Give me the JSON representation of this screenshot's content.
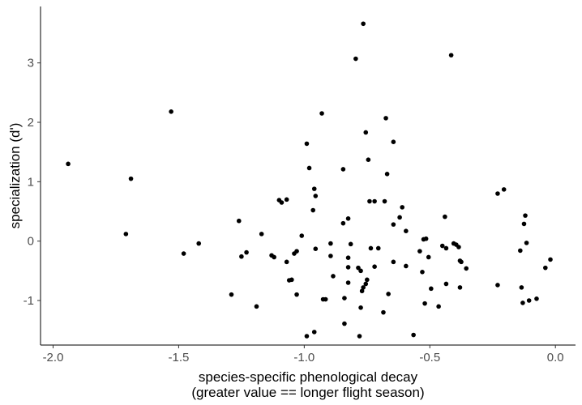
{
  "chart_data": {
    "type": "scatter",
    "title": "",
    "xlabel_lines": [
      "species-specific phenological decay",
      "(greater value == longer flight season)"
    ],
    "ylabel": "specialization (d')",
    "xlim": [
      -2.05,
      0.08
    ],
    "ylim": [
      -1.75,
      3.95
    ],
    "x_ticks": [
      -2.0,
      -1.5,
      -1.0,
      -0.5,
      0.0
    ],
    "x_tick_labels": [
      "-2.0",
      "-1.5",
      "-1.0",
      "-0.5",
      "0.0"
    ],
    "y_ticks": [
      -1,
      0,
      1,
      2,
      3
    ],
    "y_tick_labels": [
      "-1",
      "0",
      "1",
      "2",
      "3"
    ],
    "grid": false,
    "point_color": "#000000",
    "points": [
      {
        "x": -1.94,
        "y": 1.3
      },
      {
        "x": -1.69,
        "y": 1.05
      },
      {
        "x": -1.71,
        "y": 0.12
      },
      {
        "x": -1.53,
        "y": 2.18
      },
      {
        "x": -1.48,
        "y": -0.21
      },
      {
        "x": -1.42,
        "y": -0.04
      },
      {
        "x": -1.26,
        "y": 0.34
      },
      {
        "x": -1.25,
        "y": -0.26
      },
      {
        "x": -1.23,
        "y": -0.19
      },
      {
        "x": -1.29,
        "y": -0.9
      },
      {
        "x": -1.19,
        "y": -1.1
      },
      {
        "x": -1.17,
        "y": 0.12
      },
      {
        "x": -1.13,
        "y": -0.24
      },
      {
        "x": -1.12,
        "y": -0.27
      },
      {
        "x": -1.1,
        "y": 0.69
      },
      {
        "x": -1.09,
        "y": 0.65
      },
      {
        "x": -1.07,
        "y": 0.7
      },
      {
        "x": -1.07,
        "y": -0.35
      },
      {
        "x": -1.06,
        "y": -0.66
      },
      {
        "x": -1.05,
        "y": -0.65
      },
      {
        "x": -1.04,
        "y": -0.21
      },
      {
        "x": -1.03,
        "y": -0.17
      },
      {
        "x": -1.03,
        "y": -0.9
      },
      {
        "x": -1.01,
        "y": 0.09
      },
      {
        "x": -0.99,
        "y": -1.6
      },
      {
        "x": -0.99,
        "y": 1.64
      },
      {
        "x": -0.98,
        "y": 1.23
      },
      {
        "x": -0.96,
        "y": 0.88
      },
      {
        "x": -0.955,
        "y": 0.76
      },
      {
        "x": -0.965,
        "y": 0.52
      },
      {
        "x": -0.955,
        "y": -0.13
      },
      {
        "x": -0.96,
        "y": -1.53
      },
      {
        "x": -0.93,
        "y": 2.15
      },
      {
        "x": -0.925,
        "y": -0.98
      },
      {
        "x": -0.915,
        "y": -0.98
      },
      {
        "x": -0.895,
        "y": -0.04
      },
      {
        "x": -0.895,
        "y": -0.25
      },
      {
        "x": -0.885,
        "y": -0.59
      },
      {
        "x": -0.845,
        "y": 1.21
      },
      {
        "x": -0.845,
        "y": 0.3
      },
      {
        "x": -0.84,
        "y": -0.96
      },
      {
        "x": -0.84,
        "y": -1.39
      },
      {
        "x": -0.825,
        "y": 0.38
      },
      {
        "x": -0.825,
        "y": -0.28
      },
      {
        "x": -0.825,
        "y": -0.44
      },
      {
        "x": -0.825,
        "y": -0.7
      },
      {
        "x": -0.815,
        "y": -0.05
      },
      {
        "x": -0.795,
        "y": 3.07
      },
      {
        "x": -0.785,
        "y": -0.45
      },
      {
        "x": -0.775,
        "y": -0.5
      },
      {
        "x": -0.775,
        "y": -1.12
      },
      {
        "x": -0.78,
        "y": -1.6
      },
      {
        "x": -0.765,
        "y": 3.66
      },
      {
        "x": -0.77,
        "y": -0.84
      },
      {
        "x": -0.765,
        "y": -0.78
      },
      {
        "x": -0.755,
        "y": -0.72
      },
      {
        "x": -0.75,
        "y": -0.65
      },
      {
        "x": -0.755,
        "y": 1.83
      },
      {
        "x": -0.745,
        "y": 1.37
      },
      {
        "x": -0.74,
        "y": 0.67
      },
      {
        "x": -0.735,
        "y": -0.12
      },
      {
        "x": -0.72,
        "y": -0.43
      },
      {
        "x": -0.72,
        "y": 0.67
      },
      {
        "x": -0.705,
        "y": -0.12
      },
      {
        "x": -0.685,
        "y": -1.2
      },
      {
        "x": -0.68,
        "y": 0.67
      },
      {
        "x": -0.675,
        "y": 2.07
      },
      {
        "x": -0.67,
        "y": 1.13
      },
      {
        "x": -0.665,
        "y": -0.89
      },
      {
        "x": -0.645,
        "y": 1.67
      },
      {
        "x": -0.645,
        "y": 0.28
      },
      {
        "x": -0.645,
        "y": -0.35
      },
      {
        "x": -0.62,
        "y": 0.4
      },
      {
        "x": -0.61,
        "y": 0.57
      },
      {
        "x": -0.595,
        "y": -0.42
      },
      {
        "x": -0.595,
        "y": 0.17
      },
      {
        "x": -0.565,
        "y": -1.58
      },
      {
        "x": -0.54,
        "y": -0.17
      },
      {
        "x": -0.53,
        "y": -0.52
      },
      {
        "x": -0.525,
        "y": 0.03
      },
      {
        "x": -0.515,
        "y": 0.04
      },
      {
        "x": -0.52,
        "y": -1.05
      },
      {
        "x": -0.505,
        "y": -0.27
      },
      {
        "x": -0.495,
        "y": -0.8
      },
      {
        "x": -0.465,
        "y": -1.1
      },
      {
        "x": -0.45,
        "y": -0.08
      },
      {
        "x": -0.44,
        "y": 0.41
      },
      {
        "x": -0.435,
        "y": -0.72
      },
      {
        "x": -0.435,
        "y": -0.12
      },
      {
        "x": -0.415,
        "y": 3.13
      },
      {
        "x": -0.405,
        "y": -0.04
      },
      {
        "x": -0.395,
        "y": -0.06
      },
      {
        "x": -0.385,
        "y": -0.1
      },
      {
        "x": -0.38,
        "y": -0.33
      },
      {
        "x": -0.38,
        "y": -0.78
      },
      {
        "x": -0.375,
        "y": -0.35
      },
      {
        "x": -0.355,
        "y": -0.46
      },
      {
        "x": -0.23,
        "y": 0.8
      },
      {
        "x": -0.23,
        "y": -0.74
      },
      {
        "x": -0.205,
        "y": 0.87
      },
      {
        "x": -0.14,
        "y": -0.16
      },
      {
        "x": -0.135,
        "y": -0.78
      },
      {
        "x": -0.13,
        "y": -1.04
      },
      {
        "x": -0.125,
        "y": 0.29
      },
      {
        "x": -0.12,
        "y": 0.43
      },
      {
        "x": -0.115,
        "y": -0.03
      },
      {
        "x": -0.105,
        "y": -1.0
      },
      {
        "x": -0.075,
        "y": -0.97
      },
      {
        "x": -0.04,
        "y": -0.45
      },
      {
        "x": -0.02,
        "y": -0.31
      }
    ]
  }
}
